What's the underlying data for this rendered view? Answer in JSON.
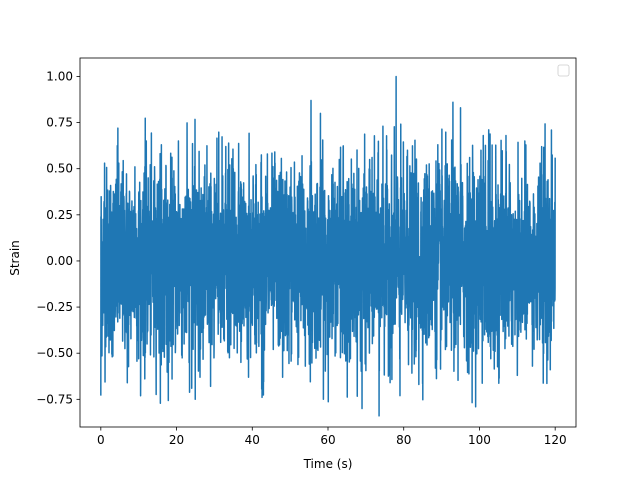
{
  "chart_data": {
    "type": "line",
    "title": "",
    "xlabel": "Time (s)",
    "ylabel": "Strain",
    "xlim": [
      -5.5,
      125.5
    ],
    "ylim": [
      -0.9,
      1.1
    ],
    "x_ticks": [
      0,
      20,
      40,
      60,
      80,
      100,
      120
    ],
    "x_tick_labels": [
      "0",
      "20",
      "40",
      "60",
      "80",
      "100",
      "120"
    ],
    "y_ticks": [
      -0.75,
      -0.5,
      -0.25,
      0.0,
      0.25,
      0.5,
      0.75,
      1.0
    ],
    "y_tick_labels": [
      "−0.75",
      "−0.50",
      "−0.25",
      "0.00",
      "0.25",
      "0.50",
      "0.75",
      "1.00"
    ],
    "grid": false,
    "legend": {
      "placement": "upper-right",
      "entries": []
    },
    "series": [
      {
        "color": "#1f77b4",
        "x_start": 0,
        "x_end": 120,
        "n_points": 4000,
        "noise_std": 0.25,
        "peaks": [
          {
            "x": 0.0,
            "y": -0.73
          },
          {
            "x": 1.0,
            "y": 0.53
          },
          {
            "x": 3.0,
            "y": -0.52
          },
          {
            "x": 4.5,
            "y": 0.72
          },
          {
            "x": 7.0,
            "y": -0.66
          },
          {
            "x": 9.0,
            "y": 0.51
          },
          {
            "x": 10.0,
            "y": -0.53
          },
          {
            "x": 12.0,
            "y": 0.65
          },
          {
            "x": 14.0,
            "y": -0.52
          },
          {
            "x": 16.0,
            "y": 0.63
          },
          {
            "x": 18.0,
            "y": -0.55
          },
          {
            "x": 20.5,
            "y": 0.65
          },
          {
            "x": 22.0,
            "y": -0.45
          },
          {
            "x": 24.0,
            "y": -0.69
          },
          {
            "x": 27.5,
            "y": 0.52
          },
          {
            "x": 29.0,
            "y": -0.68
          },
          {
            "x": 33.0,
            "y": 0.62
          },
          {
            "x": 35.0,
            "y": 0.5
          },
          {
            "x": 37.0,
            "y": -0.55
          },
          {
            "x": 39.0,
            "y": -0.63
          },
          {
            "x": 44.0,
            "y": 0.58
          },
          {
            "x": 46.0,
            "y": 0.53
          },
          {
            "x": 48.0,
            "y": -0.63
          },
          {
            "x": 50.0,
            "y": 0.4
          },
          {
            "x": 54.0,
            "y": -0.57
          },
          {
            "x": 55.5,
            "y": 0.87
          },
          {
            "x": 58.0,
            "y": 0.8
          },
          {
            "x": 62.0,
            "y": -0.48
          },
          {
            "x": 63.0,
            "y": 0.55
          },
          {
            "x": 64.0,
            "y": 0.62
          },
          {
            "x": 69.0,
            "y": -0.8
          },
          {
            "x": 71.0,
            "y": 0.55
          },
          {
            "x": 73.5,
            "y": -0.84
          },
          {
            "x": 74.5,
            "y": 0.73
          },
          {
            "x": 78.0,
            "y": 1.0
          },
          {
            "x": 79.0,
            "y": -0.73
          },
          {
            "x": 81.0,
            "y": 0.6
          },
          {
            "x": 84.0,
            "y": -0.67
          },
          {
            "x": 86.0,
            "y": 0.52
          },
          {
            "x": 89.0,
            "y": 0.63
          },
          {
            "x": 91.0,
            "y": -0.48
          },
          {
            "x": 93.0,
            "y": 0.86
          },
          {
            "x": 95.0,
            "y": 0.83
          },
          {
            "x": 97.0,
            "y": -0.53
          },
          {
            "x": 99.0,
            "y": -0.79
          },
          {
            "x": 101.0,
            "y": 0.68
          },
          {
            "x": 103.0,
            "y": -0.53
          },
          {
            "x": 107.0,
            "y": 0.68
          },
          {
            "x": 110.0,
            "y": -0.62
          },
          {
            "x": 112.0,
            "y": 0.65
          },
          {
            "x": 114.0,
            "y": -0.57
          },
          {
            "x": 116.0,
            "y": 0.53
          },
          {
            "x": 118.0,
            "y": -0.53
          },
          {
            "x": 119.0,
            "y": 0.71
          },
          {
            "x": 120.0,
            "y": 0.56
          }
        ]
      }
    ]
  }
}
